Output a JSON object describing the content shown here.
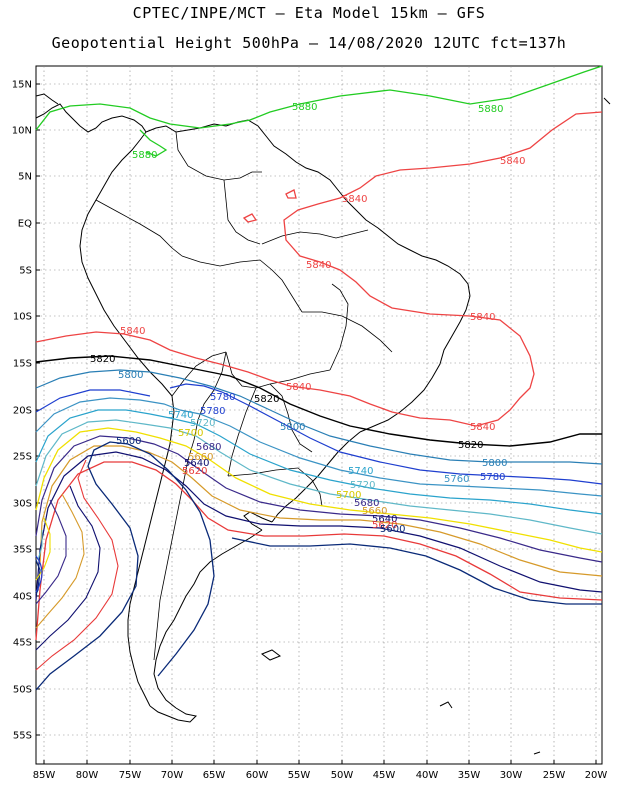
{
  "header": {
    "line1": "CPTEC/INPE/MCT –  Eta Model 15km – GFS",
    "line2": "Geopotential Height 500hPa – 14/08/2020 12UTC fct=137h"
  },
  "axes": {
    "lat_labels": [
      "15N",
      "10N",
      "5N",
      "EQ",
      "5S",
      "10S",
      "15S",
      "20S",
      "25S",
      "30S",
      "35S",
      "40S",
      "45S",
      "50S",
      "55S"
    ],
    "lon_labels": [
      "85W",
      "80W",
      "75W",
      "70W",
      "65W",
      "60W",
      "55W",
      "50W",
      "45W",
      "40W",
      "35W",
      "30W",
      "25W",
      "20W"
    ]
  },
  "colors": {
    "c5880": "#22cc22",
    "c5840": "#ee4444",
    "c5820": "#000000",
    "c5800": "#2a7fb5",
    "c5780": "#1f3fcf",
    "c5760": "#3b93c4",
    "c5740": "#2aa3cc",
    "c5720": "#5fb8c8",
    "c5700": "#f0e000",
    "c5680": "#3a2a8a",
    "c5660": "#d69a2a",
    "c5640": "#101070",
    "c5620": "#e83a3a",
    "c5600": "#0a2a78",
    "grid": "#888888"
  },
  "contour_labels": [
    {
      "text": "5880",
      "color": "#22cc22"
    },
    {
      "text": "5880",
      "color": "#22cc22"
    },
    {
      "text": "5880",
      "color": "#22cc22"
    },
    {
      "text": "5840",
      "color": "#ee4444"
    },
    {
      "text": "5840",
      "color": "#ee4444"
    },
    {
      "text": "5840",
      "color": "#ee4444"
    },
    {
      "text": "5840",
      "color": "#ee4444"
    },
    {
      "text": "5840",
      "color": "#ee4444"
    },
    {
      "text": "5840",
      "color": "#ee4444"
    },
    {
      "text": "5840",
      "color": "#ee4444"
    },
    {
      "text": "5820",
      "color": "#000000"
    },
    {
      "text": "5820",
      "color": "#000000"
    },
    {
      "text": "5820",
      "color": "#000000"
    },
    {
      "text": "5800",
      "color": "#2a7fb5"
    },
    {
      "text": "5800",
      "color": "#2a7fb5"
    },
    {
      "text": "5800",
      "color": "#2a7fb5"
    },
    {
      "text": "5780",
      "color": "#1f3fcf"
    },
    {
      "text": "5780",
      "color": "#1f3fcf"
    },
    {
      "text": "5780",
      "color": "#1f3fcf"
    },
    {
      "text": "5760",
      "color": "#3b93c4"
    },
    {
      "text": "5740",
      "color": "#2aa3cc"
    },
    {
      "text": "5740",
      "color": "#2aa3cc"
    },
    {
      "text": "5720",
      "color": "#5fb8c8"
    },
    {
      "text": "5720",
      "color": "#5fb8c8"
    },
    {
      "text": "5700",
      "color": "#d6c800"
    },
    {
      "text": "5700",
      "color": "#d6c800"
    },
    {
      "text": "5680",
      "color": "#3a2a8a"
    },
    {
      "text": "5680",
      "color": "#3a2a8a"
    },
    {
      "text": "5660",
      "color": "#d69a2a"
    },
    {
      "text": "5660",
      "color": "#d69a2a"
    },
    {
      "text": "5640",
      "color": "#101070"
    },
    {
      "text": "5640",
      "color": "#101070"
    },
    {
      "text": "5620",
      "color": "#e83a3a"
    },
    {
      "text": "5620",
      "color": "#e83a3a"
    },
    {
      "text": "5600",
      "color": "#0a2a78"
    },
    {
      "text": "5600",
      "color": "#0a2a78"
    }
  ]
}
